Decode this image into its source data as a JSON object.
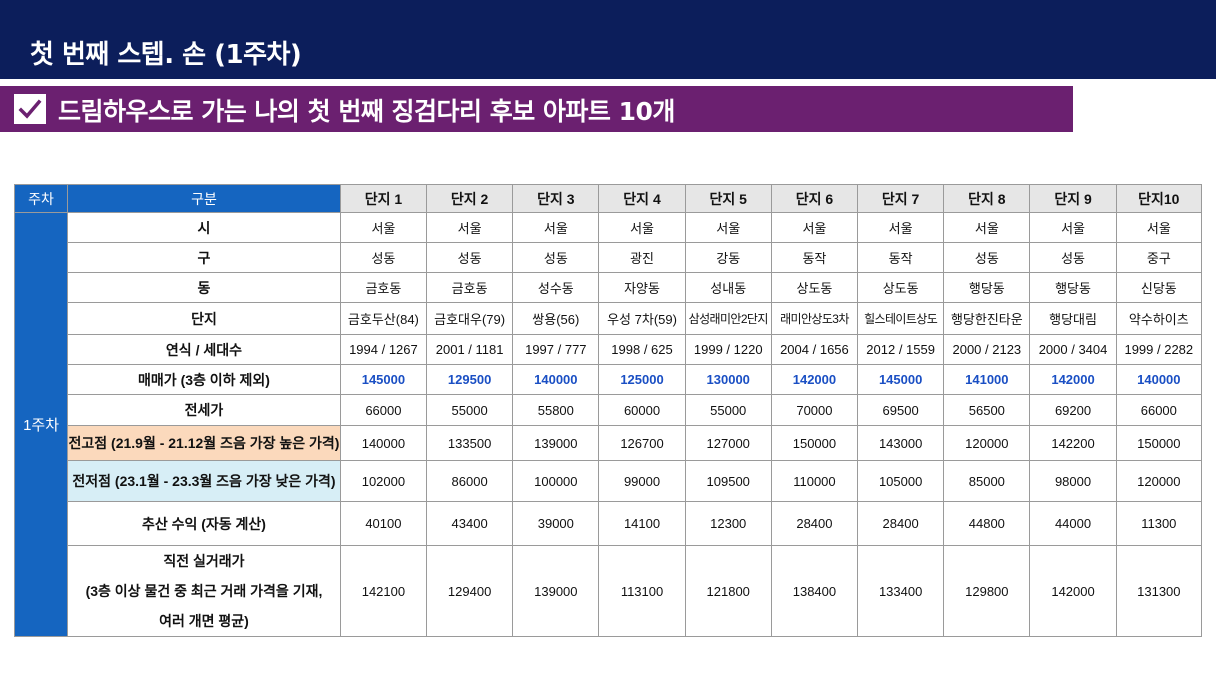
{
  "header": {
    "title": "첫 번째 스텝. 손 (1주차)",
    "subtitle": "드림하우스로 가는 나의 첫 번째 징검다리 후보 아파트 10개"
  },
  "table": {
    "col_week": "주차",
    "col_category": "구분",
    "week_label": "1주차",
    "units": [
      "단지 1",
      "단지 2",
      "단지 3",
      "단지 4",
      "단지 5",
      "단지 6",
      "단지 7",
      "단지 8",
      "단지 9",
      "단지10"
    ],
    "rows": [
      {
        "label": "시",
        "values": [
          "서울",
          "서울",
          "서울",
          "서울",
          "서울",
          "서울",
          "서울",
          "서울",
          "서울",
          "서울"
        ]
      },
      {
        "label": "구",
        "values": [
          "성동",
          "성동",
          "성동",
          "광진",
          "강동",
          "동작",
          "동작",
          "성동",
          "성동",
          "중구"
        ]
      },
      {
        "label": "동",
        "values": [
          "금호동",
          "금호동",
          "성수동",
          "자양동",
          "성내동",
          "상도동",
          "상도동",
          "행당동",
          "행당동",
          "신당동"
        ]
      },
      {
        "label": "단지",
        "values": [
          "금호두산(84)",
          "금호대우(79)",
          "쌍용(56)",
          "우성 7차(59)",
          "삼성래미안2단지",
          "래미안상도3차",
          "힐스테이트상도",
          "행당한진타운",
          "행당대림",
          "약수하이츠"
        ]
      },
      {
        "label": "연식 / 세대수",
        "values": [
          "1994 / 1267",
          "2001 / 1181",
          "1997 / 777",
          "1998 / 625",
          "1999 / 1220",
          "2004 / 1656",
          "2012 / 1559",
          "2000 / 2123",
          "2000 / 3404",
          "1999 / 2282"
        ]
      },
      {
        "label": "매매가 (3층 이하 제외)",
        "values": [
          "145000",
          "129500",
          "140000",
          "125000",
          "130000",
          "142000",
          "145000",
          "141000",
          "142000",
          "140000"
        ]
      },
      {
        "label": "전세가",
        "values": [
          "66000",
          "55000",
          "55800",
          "60000",
          "55000",
          "70000",
          "69500",
          "56500",
          "69200",
          "66000"
        ]
      },
      {
        "label": "전고점 (21.9월 - 21.12월 즈음 가장 높은 가격)",
        "values": [
          "140000",
          "133500",
          "139000",
          "126700",
          "127000",
          "150000",
          "143000",
          "120000",
          "142200",
          "150000"
        ]
      },
      {
        "label": "전저점 (23.1월 - 23.3월 즈음 가장 낮은 가격)",
        "values": [
          "102000",
          "86000",
          "100000",
          "99000",
          "109500",
          "110000",
          "105000",
          "85000",
          "98000",
          "120000"
        ]
      },
      {
        "label": "추산 수익 (자동 계산)",
        "values": [
          "40100",
          "43400",
          "39000",
          "14100",
          "12300",
          "28400",
          "28400",
          "44800",
          "44000",
          "11300"
        ]
      }
    ],
    "last_row": {
      "label_lines": [
        "직전 실거래가",
        "(3층 이상 물건 중 최근 거래 가격을 기재,",
        "여러 개면 평균)"
      ],
      "values": [
        "142100",
        "129400",
        "139000",
        "113100",
        "121800",
        "138400",
        "133400",
        "129800",
        "142000",
        "131300"
      ]
    }
  },
  "colors": {
    "topbar": "#0c1e5b",
    "subbar": "#6b2070",
    "week_blue": "#1565c0",
    "price_blue": "#1a4fc4",
    "peach": "#fbd9bc",
    "lightblue": "#d7eef6"
  }
}
